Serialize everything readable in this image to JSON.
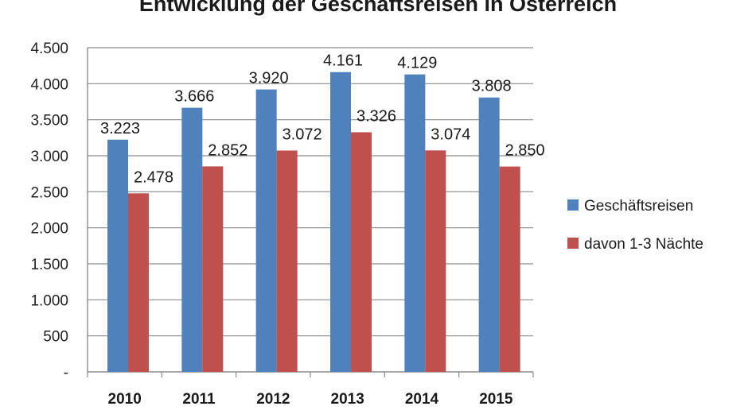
{
  "chart_data": {
    "type": "bar",
    "title": "Entwicklung der Geschäftsreisen in Österreich",
    "xlabel": "",
    "ylabel": "",
    "categories": [
      "2010",
      "2011",
      "2012",
      "2013",
      "2014",
      "2015"
    ],
    "series": [
      {
        "name": "Geschäftsreisen",
        "color": "#4f81bd",
        "values": [
          3223,
          3666,
          3920,
          4161,
          4129,
          3808
        ],
        "labels": [
          "3.223",
          "3.666",
          "3.920",
          "4.161",
          "4.129",
          "3.808"
        ]
      },
      {
        "name": "davon 1-3 Nächte",
        "color": "#c0504d",
        "values": [
          2478,
          2852,
          3072,
          3326,
          3074,
          2850
        ],
        "labels": [
          "2.478",
          "2.852",
          "3.072",
          "3.326",
          "3.074",
          "2.850"
        ]
      }
    ],
    "ylim": [
      0,
      4500
    ],
    "yticks": [
      0,
      500,
      1000,
      1500,
      2000,
      2500,
      3000,
      3500,
      4000,
      4500
    ],
    "ytick_labels": [
      "-",
      "500",
      "1.000",
      "1.500",
      "2.000",
      "2.500",
      "3.000",
      "3.500",
      "4.000",
      "4.500"
    ],
    "grid": "horizontal",
    "legend": "right"
  }
}
